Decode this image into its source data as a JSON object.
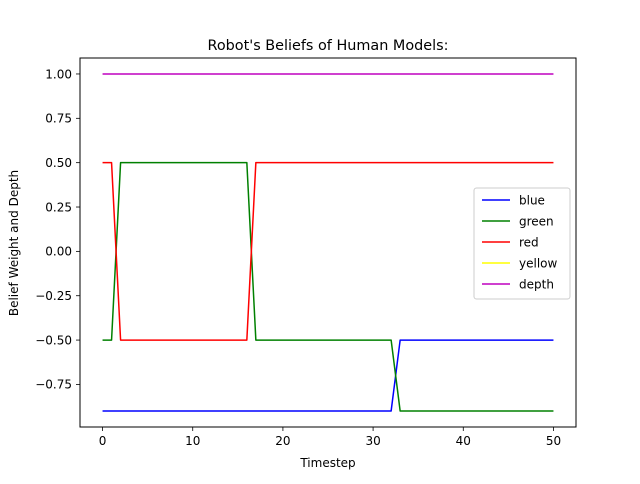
{
  "chart_data": {
    "type": "line",
    "title": "Robot's Beliefs of Human Models:",
    "xlabel": "Timestep",
    "ylabel": "Belief Weight and Depth",
    "xlim": [
      -2.5,
      52.5
    ],
    "ylim": [
      -0.99,
      1.09
    ],
    "xticks": [
      0,
      10,
      20,
      30,
      40,
      50
    ],
    "xtick_labels": [
      "0",
      "10",
      "20",
      "30",
      "40",
      "50"
    ],
    "yticks": [
      -0.75,
      -0.5,
      -0.25,
      0.0,
      0.25,
      0.5,
      0.75,
      1.0
    ],
    "ytick_labels": [
      "−0.75",
      "−0.50",
      "−0.25",
      "0.00",
      "0.25",
      "0.50",
      "0.75",
      "1.00"
    ],
    "grid": false,
    "legend_position": "center-right",
    "series": [
      {
        "name": "blue",
        "color": "#0000ff",
        "points": [
          [
            0,
            -0.9
          ],
          [
            32,
            -0.9
          ],
          [
            33,
            -0.5
          ],
          [
            50,
            -0.5
          ]
        ]
      },
      {
        "name": "green",
        "color": "#008000",
        "points": [
          [
            0,
            -0.5
          ],
          [
            1,
            -0.5
          ],
          [
            2,
            0.5
          ],
          [
            16,
            0.5
          ],
          [
            17,
            -0.5
          ],
          [
            32,
            -0.5
          ],
          [
            33,
            -0.9
          ],
          [
            50,
            -0.9
          ]
        ]
      },
      {
        "name": "red",
        "color": "#ff0000",
        "points": [
          [
            0,
            0.5
          ],
          [
            1,
            0.5
          ],
          [
            2,
            -0.5
          ],
          [
            16,
            -0.5
          ],
          [
            17,
            0.5
          ],
          [
            50,
            0.5
          ]
        ]
      },
      {
        "name": "yellow",
        "color": "#ffff00",
        "points": []
      },
      {
        "name": "depth",
        "color": "#bf00bf",
        "points": [
          [
            0,
            1.0
          ],
          [
            50,
            1.0
          ]
        ]
      }
    ]
  }
}
